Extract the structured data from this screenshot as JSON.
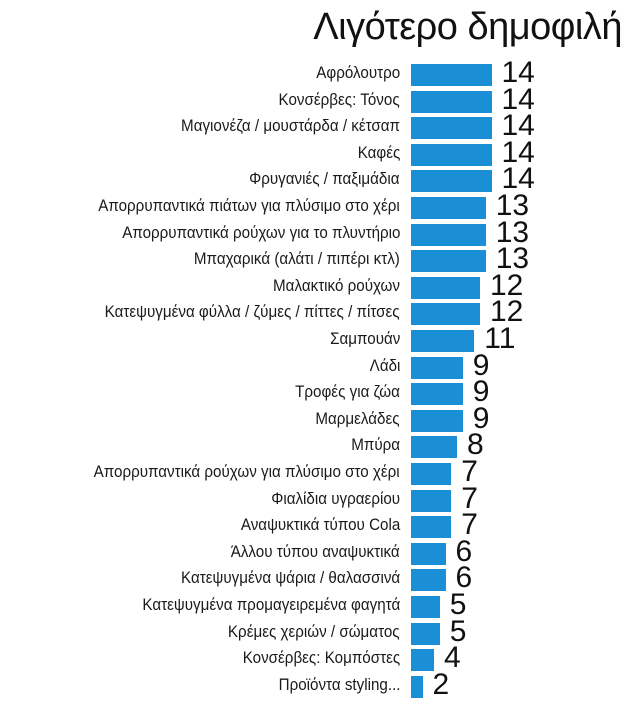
{
  "title": "Λιγότερο δημοφιλή",
  "chart_data": {
    "type": "bar",
    "orientation": "horizontal",
    "title": "Λιγότερο δημοφιλή",
    "xlabel": "",
    "ylabel": "",
    "bar_color": "#1a8fd6",
    "categories": [
      "Αφρόλουτρο",
      "Κονσέρβες: Τόνος",
      "Μαγιονέζα / μουστάρδα / κέτσαπ",
      "Καφές",
      "Φρυγανιές / παξιμάδια",
      "Απορρυπαντικά πιάτων για πλύσιμο στο χέρι",
      "Απορρυπαντικά ρούχων για το πλυντήριο",
      "Μπαχαρικά (αλάτι / πιπέρι κτλ)",
      "Μαλακτικό ρούχων",
      "Κατεψυγμένα φύλλα / ζύμες / πίττες / πίτσες",
      "Σαμπουάν",
      "Λάδι",
      "Τροφές για ζώα",
      "Μαρμελάδες",
      "Μπύρα",
      "Απορρυπαντικά ρούχων για πλύσιμο στο χέρι",
      "Φιαλίδια υγραερίου",
      "Αναψυκτικά τύπου Cola",
      "Άλλου τύπου αναψυκτικά",
      "Κατεψυγμένα ψάρια / θαλασσινά",
      "Κατεψυγμένα προμαγειρεμένα φαγητά",
      "Κρέμες χεριών / σώματος",
      "Κονσέρβες: Κομπόστες",
      "Προϊόντα styling..."
    ],
    "values": [
      14,
      14,
      14,
      14,
      14,
      13,
      13,
      13,
      12,
      12,
      11,
      9,
      9,
      9,
      8,
      7,
      7,
      7,
      6,
      6,
      5,
      5,
      4,
      2
    ],
    "grid": false,
    "legend": null
  }
}
